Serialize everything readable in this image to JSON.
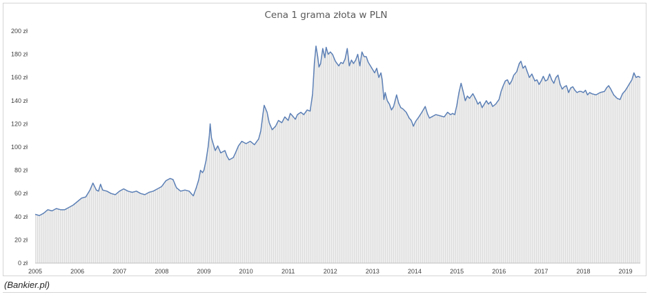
{
  "chart_data": {
    "type": "area",
    "title": "Cena 1 grama złota w PLN",
    "ylim": [
      0,
      200
    ],
    "xlim": [
      2005.0,
      2019.35
    ],
    "y_ticks": [
      {
        "v": 0,
        "label": "0 zł"
      },
      {
        "v": 20,
        "label": "20 zł"
      },
      {
        "v": 40,
        "label": "40 zł"
      },
      {
        "v": 60,
        "label": "60 zł"
      },
      {
        "v": 80,
        "label": "80 zł"
      },
      {
        "v": 100,
        "label": "100 zł"
      },
      {
        "v": 120,
        "label": "120 zł"
      },
      {
        "v": 140,
        "label": "140 zł"
      },
      {
        "v": 160,
        "label": "160 zł"
      },
      {
        "v": 180,
        "label": "180 zł"
      },
      {
        "v": 200,
        "label": "200 zł"
      }
    ],
    "x_ticks": [
      {
        "v": 2005,
        "label": "2005"
      },
      {
        "v": 2006,
        "label": "2006"
      },
      {
        "v": 2007,
        "label": "2007"
      },
      {
        "v": 2008,
        "label": "2008"
      },
      {
        "v": 2009,
        "label": "2009"
      },
      {
        "v": 2010,
        "label": "2010"
      },
      {
        "v": 2011,
        "label": "2011"
      },
      {
        "v": 2012,
        "label": "2012"
      },
      {
        "v": 2013,
        "label": "2013"
      },
      {
        "v": 2014,
        "label": "2014"
      },
      {
        "v": 2015,
        "label": "2015"
      },
      {
        "v": 2016,
        "label": "2016"
      },
      {
        "v": 2017,
        "label": "2017"
      },
      {
        "v": 2018,
        "label": "2018"
      },
      {
        "v": 2019,
        "label": "2019"
      }
    ],
    "series": [
      {
        "color": "#5b7fb5",
        "points": [
          [
            2005.0,
            42
          ],
          [
            2005.1,
            41
          ],
          [
            2005.2,
            43
          ],
          [
            2005.3,
            46
          ],
          [
            2005.4,
            45
          ],
          [
            2005.5,
            47
          ],
          [
            2005.6,
            46
          ],
          [
            2005.7,
            46
          ],
          [
            2005.8,
            48
          ],
          [
            2005.9,
            50
          ],
          [
            2006.0,
            53
          ],
          [
            2006.1,
            56
          ],
          [
            2006.2,
            57
          ],
          [
            2006.3,
            63
          ],
          [
            2006.37,
            69
          ],
          [
            2006.45,
            63
          ],
          [
            2006.5,
            62
          ],
          [
            2006.55,
            68
          ],
          [
            2006.6,
            63
          ],
          [
            2006.7,
            62
          ],
          [
            2006.8,
            60
          ],
          [
            2006.9,
            59
          ],
          [
            2007.0,
            62
          ],
          [
            2007.1,
            64
          ],
          [
            2007.2,
            62
          ],
          [
            2007.3,
            61
          ],
          [
            2007.4,
            62
          ],
          [
            2007.5,
            60
          ],
          [
            2007.6,
            59
          ],
          [
            2007.7,
            61
          ],
          [
            2007.8,
            62
          ],
          [
            2007.9,
            64
          ],
          [
            2008.0,
            66
          ],
          [
            2008.1,
            71
          ],
          [
            2008.2,
            73
          ],
          [
            2008.27,
            72
          ],
          [
            2008.35,
            65
          ],
          [
            2008.45,
            62
          ],
          [
            2008.55,
            63
          ],
          [
            2008.65,
            62
          ],
          [
            2008.7,
            60
          ],
          [
            2008.75,
            58
          ],
          [
            2008.82,
            65
          ],
          [
            2008.88,
            72
          ],
          [
            2008.92,
            80
          ],
          [
            2008.97,
            78
          ],
          [
            2009.0,
            80
          ],
          [
            2009.05,
            88
          ],
          [
            2009.1,
            100
          ],
          [
            2009.13,
            110
          ],
          [
            2009.15,
            120
          ],
          [
            2009.18,
            108
          ],
          [
            2009.22,
            103
          ],
          [
            2009.27,
            97
          ],
          [
            2009.33,
            101
          ],
          [
            2009.4,
            95
          ],
          [
            2009.5,
            97
          ],
          [
            2009.55,
            92
          ],
          [
            2009.6,
            89
          ],
          [
            2009.7,
            91
          ],
          [
            2009.75,
            95
          ],
          [
            2009.82,
            101
          ],
          [
            2009.9,
            105
          ],
          [
            2010.0,
            103
          ],
          [
            2010.1,
            105
          ],
          [
            2010.2,
            102
          ],
          [
            2010.3,
            107
          ],
          [
            2010.35,
            114
          ],
          [
            2010.4,
            128
          ],
          [
            2010.43,
            136
          ],
          [
            2010.5,
            130
          ],
          [
            2010.55,
            121
          ],
          [
            2010.62,
            115
          ],
          [
            2010.7,
            118
          ],
          [
            2010.77,
            123
          ],
          [
            2010.85,
            121
          ],
          [
            2010.92,
            126
          ],
          [
            2011.0,
            123
          ],
          [
            2011.05,
            129
          ],
          [
            2011.1,
            127
          ],
          [
            2011.17,
            124
          ],
          [
            2011.22,
            128
          ],
          [
            2011.3,
            130
          ],
          [
            2011.37,
            128
          ],
          [
            2011.45,
            132
          ],
          [
            2011.52,
            131
          ],
          [
            2011.58,
            146
          ],
          [
            2011.62,
            172
          ],
          [
            2011.66,
            187
          ],
          [
            2011.7,
            178
          ],
          [
            2011.73,
            169
          ],
          [
            2011.77,
            172
          ],
          [
            2011.82,
            185
          ],
          [
            2011.87,
            177
          ],
          [
            2011.9,
            186
          ],
          [
            2011.95,
            180
          ],
          [
            2012.0,
            182
          ],
          [
            2012.05,
            180
          ],
          [
            2012.12,
            174
          ],
          [
            2012.2,
            170
          ],
          [
            2012.25,
            173
          ],
          [
            2012.3,
            172
          ],
          [
            2012.35,
            176
          ],
          [
            2012.4,
            185
          ],
          [
            2012.45,
            170
          ],
          [
            2012.5,
            175
          ],
          [
            2012.55,
            172
          ],
          [
            2012.6,
            175
          ],
          [
            2012.65,
            180
          ],
          [
            2012.7,
            170
          ],
          [
            2012.75,
            182
          ],
          [
            2012.8,
            178
          ],
          [
            2012.85,
            178
          ],
          [
            2012.9,
            173
          ],
          [
            2012.95,
            170
          ],
          [
            2013.0,
            167
          ],
          [
            2013.05,
            164
          ],
          [
            2013.1,
            168
          ],
          [
            2013.15,
            160
          ],
          [
            2013.2,
            164
          ],
          [
            2013.23,
            158
          ],
          [
            2013.27,
            141
          ],
          [
            2013.3,
            147
          ],
          [
            2013.35,
            140
          ],
          [
            2013.4,
            137
          ],
          [
            2013.45,
            132
          ],
          [
            2013.5,
            135
          ],
          [
            2013.57,
            145
          ],
          [
            2013.62,
            138
          ],
          [
            2013.67,
            134
          ],
          [
            2013.72,
            133
          ],
          [
            2013.8,
            130
          ],
          [
            2013.87,
            125
          ],
          [
            2013.92,
            123
          ],
          [
            2013.97,
            118
          ],
          [
            2014.02,
            122
          ],
          [
            2014.1,
            126
          ],
          [
            2014.17,
            130
          ],
          [
            2014.25,
            135
          ],
          [
            2014.3,
            129
          ],
          [
            2014.35,
            125
          ],
          [
            2014.4,
            126
          ],
          [
            2014.5,
            128
          ],
          [
            2014.6,
            127
          ],
          [
            2014.7,
            126
          ],
          [
            2014.78,
            130
          ],
          [
            2014.85,
            128
          ],
          [
            2014.9,
            129
          ],
          [
            2014.95,
            128
          ],
          [
            2015.0,
            136
          ],
          [
            2015.05,
            147
          ],
          [
            2015.1,
            155
          ],
          [
            2015.15,
            148
          ],
          [
            2015.2,
            140
          ],
          [
            2015.25,
            144
          ],
          [
            2015.3,
            142
          ],
          [
            2015.38,
            146
          ],
          [
            2015.45,
            141
          ],
          [
            2015.5,
            137
          ],
          [
            2015.55,
            139
          ],
          [
            2015.6,
            134
          ],
          [
            2015.7,
            140
          ],
          [
            2015.75,
            137
          ],
          [
            2015.8,
            139
          ],
          [
            2015.85,
            135
          ],
          [
            2015.92,
            137
          ],
          [
            2016.0,
            141
          ],
          [
            2016.05,
            148
          ],
          [
            2016.1,
            153
          ],
          [
            2016.15,
            157
          ],
          [
            2016.2,
            158
          ],
          [
            2016.25,
            154
          ],
          [
            2016.3,
            157
          ],
          [
            2016.35,
            162
          ],
          [
            2016.42,
            165
          ],
          [
            2016.48,
            172
          ],
          [
            2016.52,
            174
          ],
          [
            2016.57,
            168
          ],
          [
            2016.62,
            170
          ],
          [
            2016.67,
            165
          ],
          [
            2016.72,
            160
          ],
          [
            2016.78,
            163
          ],
          [
            2016.85,
            157
          ],
          [
            2016.9,
            158
          ],
          [
            2016.95,
            154
          ],
          [
            2017.0,
            157
          ],
          [
            2017.05,
            161
          ],
          [
            2017.1,
            157
          ],
          [
            2017.15,
            158
          ],
          [
            2017.2,
            163
          ],
          [
            2017.25,
            158
          ],
          [
            2017.3,
            155
          ],
          [
            2017.35,
            160
          ],
          [
            2017.4,
            162
          ],
          [
            2017.45,
            154
          ],
          [
            2017.5,
            150
          ],
          [
            2017.55,
            152
          ],
          [
            2017.6,
            153
          ],
          [
            2017.65,
            147
          ],
          [
            2017.7,
            151
          ],
          [
            2017.75,
            152
          ],
          [
            2017.8,
            149
          ],
          [
            2017.85,
            147
          ],
          [
            2017.9,
            148
          ],
          [
            2017.95,
            148
          ],
          [
            2018.0,
            147
          ],
          [
            2018.05,
            149
          ],
          [
            2018.1,
            145
          ],
          [
            2018.15,
            147
          ],
          [
            2018.2,
            146
          ],
          [
            2018.3,
            145
          ],
          [
            2018.4,
            147
          ],
          [
            2018.5,
            148
          ],
          [
            2018.55,
            151
          ],
          [
            2018.6,
            153
          ],
          [
            2018.65,
            150
          ],
          [
            2018.72,
            145
          ],
          [
            2018.8,
            142
          ],
          [
            2018.87,
            141
          ],
          [
            2018.93,
            146
          ],
          [
            2019.0,
            149
          ],
          [
            2019.05,
            152
          ],
          [
            2019.1,
            155
          ],
          [
            2019.15,
            158
          ],
          [
            2019.2,
            164
          ],
          [
            2019.25,
            160
          ],
          [
            2019.3,
            161
          ],
          [
            2019.35,
            160
          ]
        ]
      }
    ]
  },
  "source_note": "(Bankier.pl)"
}
